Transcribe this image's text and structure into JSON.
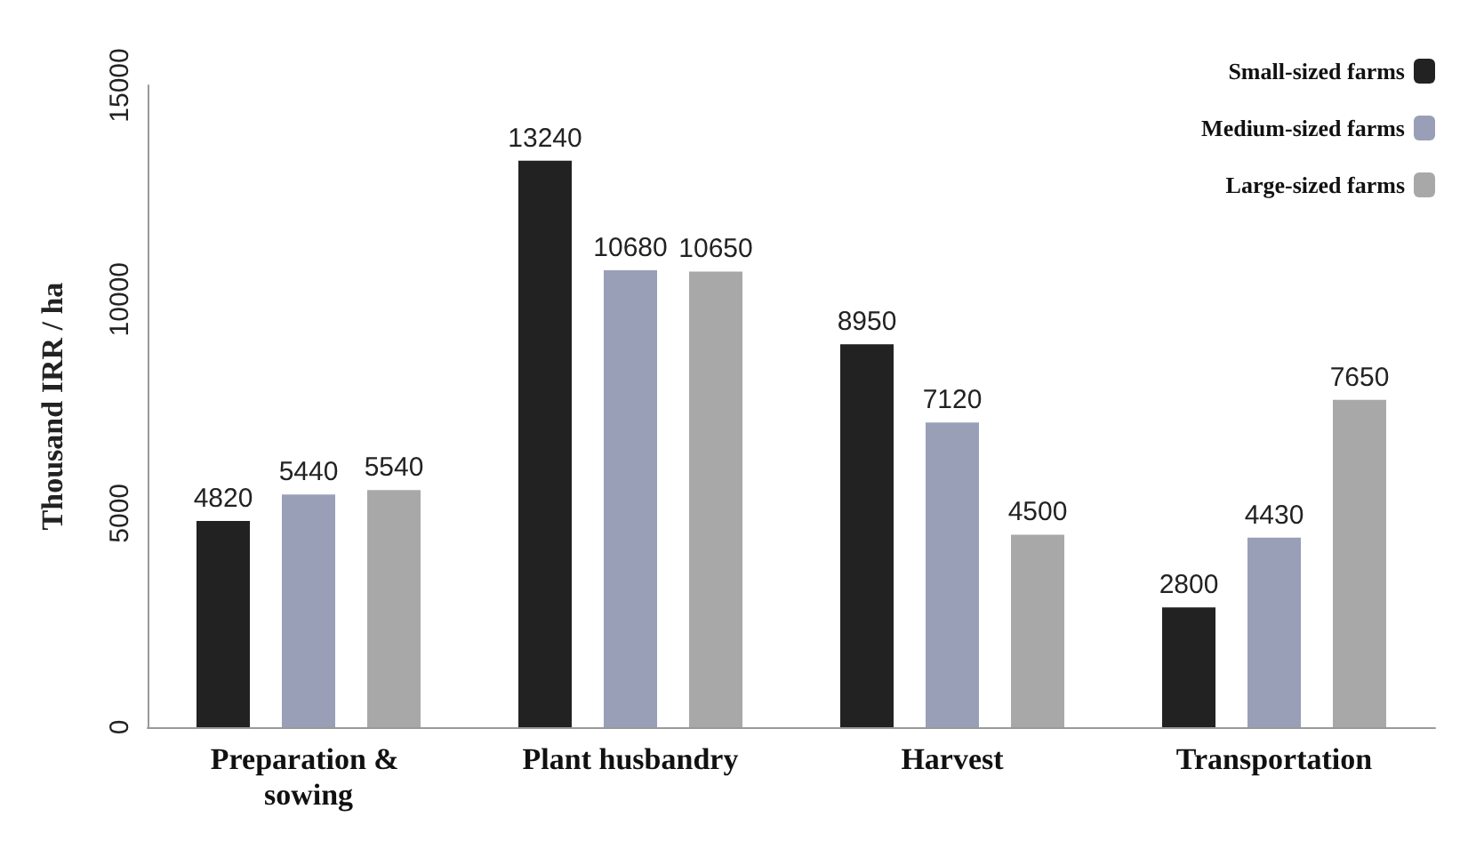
{
  "chart_data": {
    "type": "bar",
    "ylabel": "Thousand IRR / ha",
    "categories": [
      "Preparation & sowing",
      "Plant husbandry",
      "Harvest",
      "Transportation"
    ],
    "series": [
      {
        "name": "Small-sized farms",
        "color": "#222222",
        "values": [
          4820,
          13240,
          8950,
          2800
        ]
      },
      {
        "name": "Medium-sized farms",
        "color": "#9a9fb8",
        "values": [
          5440,
          10680,
          7120,
          4430
        ]
      },
      {
        "name": "Large-sized farms",
        "color": "#a8a8a8",
        "values": [
          5540,
          10650,
          4500,
          7650
        ]
      }
    ],
    "ylim": [
      0,
      15000
    ],
    "yticks": [
      0,
      5000,
      10000,
      15000
    ],
    "grid": false,
    "legend": "top right",
    "data_labels": true
  }
}
